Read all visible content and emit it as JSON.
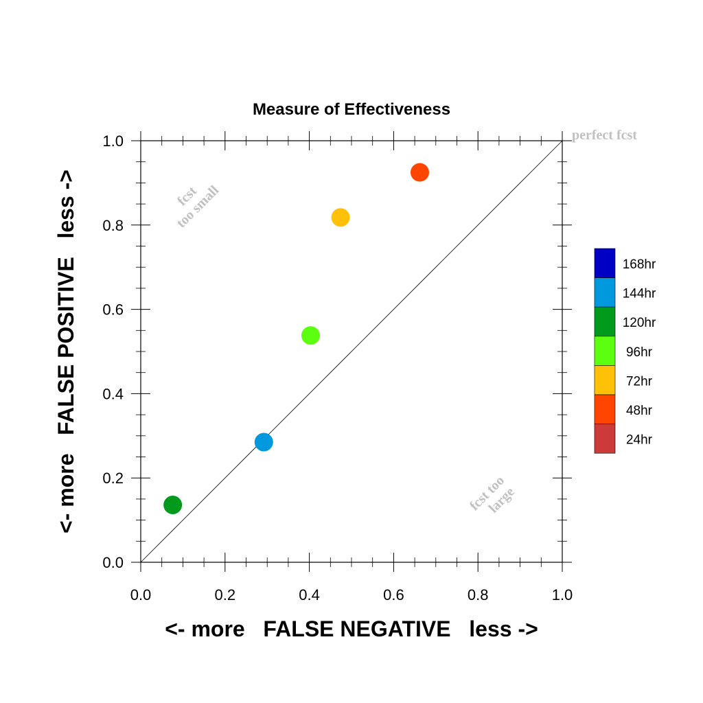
{
  "chart_data": {
    "type": "scatter",
    "title": "Measure of Effectiveness",
    "xlabel": "<- more   FALSE NEGATIVE   less ->",
    "ylabel": "<- more   FALSE POSITIVE   less ->",
    "xlim": [
      0.0,
      1.0
    ],
    "ylim": [
      0.0,
      1.0
    ],
    "x_ticks": [
      "0.0",
      "0.2",
      "0.4",
      "0.6",
      "0.8",
      "1.0"
    ],
    "y_ticks": [
      "0.0",
      "0.2",
      "0.4",
      "0.6",
      "0.8",
      "1.0"
    ],
    "grid": false,
    "reference_line": {
      "from": [
        0,
        0
      ],
      "to": [
        1,
        1
      ]
    },
    "annotations": {
      "perfect": "perfect fcst",
      "too_small_line1": "fcst",
      "too_small_line2": "too small",
      "too_large_line1": "fcst too",
      "too_large_line2": "large"
    },
    "legend": {
      "placement": "right",
      "entries": [
        {
          "label": "168hr",
          "color": "#0000c4"
        },
        {
          "label": "144hr",
          "color": "#0099dd"
        },
        {
          "label": "120hr",
          "color": "#009a1d"
        },
        {
          "label": "96hr",
          "color": "#5cff10"
        },
        {
          "label": "72hr",
          "color": "#ffc108"
        },
        {
          "label": "48hr",
          "color": "#ff4500"
        },
        {
          "label": "24hr",
          "color": "#cc3a3a"
        }
      ]
    },
    "points": [
      {
        "series": "120hr",
        "x": 0.076,
        "y": 0.136,
        "color": "#009a1d"
      },
      {
        "series": "144hr",
        "x": 0.292,
        "y": 0.285,
        "color": "#0099dd"
      },
      {
        "series": "96hr",
        "x": 0.403,
        "y": 0.538,
        "color": "#5cff10"
      },
      {
        "series": "72hr",
        "x": 0.474,
        "y": 0.818,
        "color": "#ffc108"
      },
      {
        "series": "48hr",
        "x": 0.662,
        "y": 0.925,
        "color": "#ff4500"
      }
    ]
  }
}
